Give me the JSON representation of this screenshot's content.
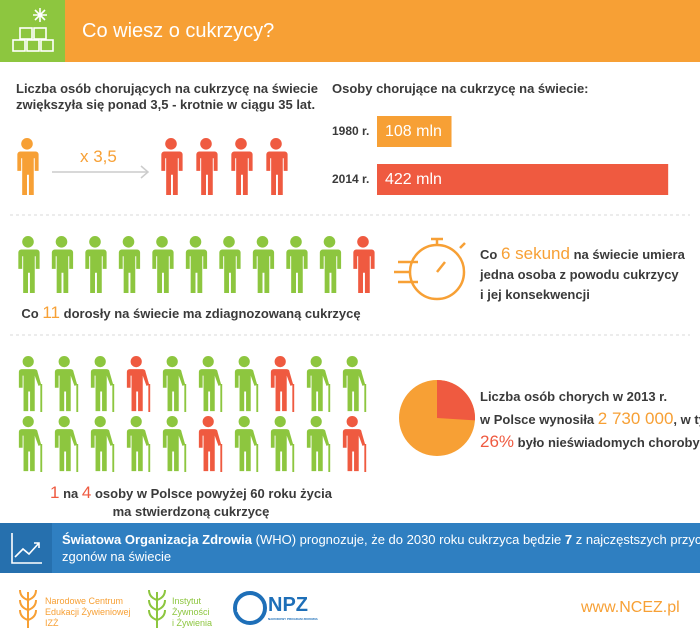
{
  "header": {
    "title": "Co wiesz o cukrzycy?"
  },
  "growth": {
    "line1": "Liczba osób chorujących na cukrzycę na świecie",
    "line2": "zwiększyła się ponad  3,5 - krotnie w ciągu 35 lat.",
    "multiplier": "x 3,5"
  },
  "bars": {
    "title": "Osoby chorujące na cukrzycę na świecie:",
    "categories": [
      "1980 r.",
      "2014 r."
    ],
    "values": [
      108,
      422
    ],
    "value_labels": [
      "108 mln",
      "422 mln"
    ],
    "colors": [
      "#f7a035",
      "#ef5a40"
    ]
  },
  "adults": {
    "before": "Co ",
    "number": "11",
    "after": " dorosły na świecie ma zdiagnozowaną cukrzycę"
  },
  "death": {
    "before": "Co ",
    "number": "6 sekund",
    "after": " na świecie umiera",
    "line2": "jedna osoba z powodu cukrzycy",
    "line3": "i jej konsekwencji"
  },
  "elderly": {
    "first": "1",
    "middle": " na ",
    "second": "4",
    "after": " osoby w Polsce  powyżej 60 roku życia",
    "line2": "ma stwierdzoną cukrzycę"
  },
  "poland": {
    "line1": "Liczba osób chorych w 2013 r.",
    "line2_before": "w Polsce wynosiła ",
    "count": "2 730 000",
    "line2_after": ", w tym",
    "unaware_percent": 26,
    "unaware_percent_label": "26%",
    "line3_after": " było nieświadomych choroby"
  },
  "who": {
    "bold1": "Światowa Organizacja Zdrowia",
    "text1": " (WHO) prognozuje, że do 2030 roku cukrzyca będzie ",
    "bold2": "7",
    "text2": " z najczęstszych przyczyn",
    "line2": "zgonów na świecie"
  },
  "footer": {
    "ncez": [
      "Narodowe Centrum",
      "Edukacji Żywieniowej",
      "IZŻ"
    ],
    "izz": [
      "Instytut",
      "Żywności",
      "i Żywienia"
    ],
    "npz": "NPZ",
    "npz_sub": "NARODOWY PROGRAM ZDROWIA",
    "url": "www.NCEZ.pl"
  }
}
